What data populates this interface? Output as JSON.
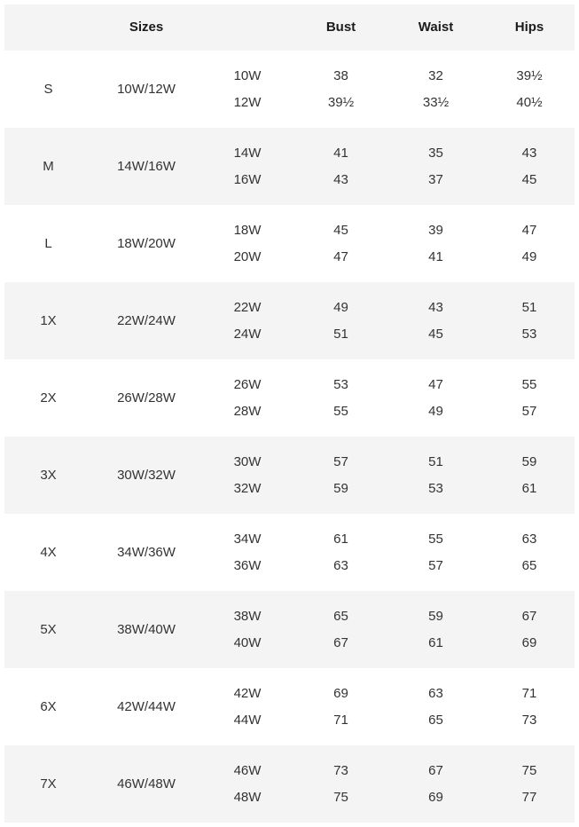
{
  "header": {
    "sizes": "Sizes",
    "bust": "Bust",
    "waist": "Waist",
    "hips": "Hips"
  },
  "colors": {
    "background": "#ffffff",
    "band": "#f4f4f4",
    "text": "#333333",
    "header_text": "#1b1b1b"
  },
  "rows": [
    {
      "letter": "S",
      "sizes": "10W/12W",
      "sub": [
        {
          "size": "10W",
          "bust": "38",
          "waist": "32",
          "hips": "39½"
        },
        {
          "size": "12W",
          "bust": "39½",
          "waist": "33½",
          "hips": "40½"
        }
      ]
    },
    {
      "letter": "M",
      "sizes": "14W/16W",
      "sub": [
        {
          "size": "14W",
          "bust": "41",
          "waist": "35",
          "hips": "43"
        },
        {
          "size": "16W",
          "bust": "43",
          "waist": "37",
          "hips": "45"
        }
      ]
    },
    {
      "letter": "L",
      "sizes": "18W/20W",
      "sub": [
        {
          "size": "18W",
          "bust": "45",
          "waist": "39",
          "hips": "47"
        },
        {
          "size": "20W",
          "bust": "47",
          "waist": "41",
          "hips": "49"
        }
      ]
    },
    {
      "letter": "1X",
      "sizes": "22W/24W",
      "sub": [
        {
          "size": "22W",
          "bust": "49",
          "waist": "43",
          "hips": "51"
        },
        {
          "size": "24W",
          "bust": "51",
          "waist": "45",
          "hips": "53"
        }
      ]
    },
    {
      "letter": "2X",
      "sizes": "26W/28W",
      "sub": [
        {
          "size": "26W",
          "bust": "53",
          "waist": "47",
          "hips": "55"
        },
        {
          "size": "28W",
          "bust": "55",
          "waist": "49",
          "hips": "57"
        }
      ]
    },
    {
      "letter": "3X",
      "sizes": "30W/32W",
      "sub": [
        {
          "size": "30W",
          "bust": "57",
          "waist": "51",
          "hips": "59"
        },
        {
          "size": "32W",
          "bust": "59",
          "waist": "53",
          "hips": "61"
        }
      ]
    },
    {
      "letter": "4X",
      "sizes": "34W/36W",
      "sub": [
        {
          "size": "34W",
          "bust": "61",
          "waist": "55",
          "hips": "63"
        },
        {
          "size": "36W",
          "bust": "63",
          "waist": "57",
          "hips": "65"
        }
      ]
    },
    {
      "letter": "5X",
      "sizes": "38W/40W",
      "sub": [
        {
          "size": "38W",
          "bust": "65",
          "waist": "59",
          "hips": "67"
        },
        {
          "size": "40W",
          "bust": "67",
          "waist": "61",
          "hips": "69"
        }
      ]
    },
    {
      "letter": "6X",
      "sizes": "42W/44W",
      "sub": [
        {
          "size": "42W",
          "bust": "69",
          "waist": "63",
          "hips": "71"
        },
        {
          "size": "44W",
          "bust": "71",
          "waist": "65",
          "hips": "73"
        }
      ]
    },
    {
      "letter": "7X",
      "sizes": "46W/48W",
      "sub": [
        {
          "size": "46W",
          "bust": "73",
          "waist": "67",
          "hips": "75"
        },
        {
          "size": "48W",
          "bust": "75",
          "waist": "69",
          "hips": "77"
        }
      ]
    }
  ],
  "chart_data": {
    "type": "table",
    "columns": [
      "",
      "Sizes",
      "",
      "Bust",
      "Waist",
      "Hips"
    ],
    "rows": [
      [
        "S",
        "10W/12W",
        "10W",
        "38",
        "32",
        "39½"
      ],
      [
        "",
        "",
        "12W",
        "39½",
        "33½",
        "40½"
      ],
      [
        "M",
        "14W/16W",
        "14W",
        "41",
        "35",
        "43"
      ],
      [
        "",
        "",
        "16W",
        "43",
        "37",
        "45"
      ],
      [
        "L",
        "18W/20W",
        "18W",
        "45",
        "39",
        "47"
      ],
      [
        "",
        "",
        "20W",
        "47",
        "41",
        "49"
      ],
      [
        "1X",
        "22W/24W",
        "22W",
        "49",
        "43",
        "51"
      ],
      [
        "",
        "",
        "24W",
        "51",
        "45",
        "53"
      ],
      [
        "2X",
        "26W/28W",
        "26W",
        "53",
        "47",
        "55"
      ],
      [
        "",
        "",
        "28W",
        "55",
        "49",
        "57"
      ],
      [
        "3X",
        "30W/32W",
        "30W",
        "57",
        "51",
        "59"
      ],
      [
        "",
        "",
        "32W",
        "59",
        "53",
        "61"
      ],
      [
        "4X",
        "34W/36W",
        "34W",
        "61",
        "55",
        "63"
      ],
      [
        "",
        "",
        "36W",
        "63",
        "57",
        "65"
      ],
      [
        "5X",
        "38W/40W",
        "38W",
        "65",
        "59",
        "67"
      ],
      [
        "",
        "",
        "40W",
        "67",
        "61",
        "69"
      ],
      [
        "6X",
        "42W/44W",
        "42W",
        "69",
        "63",
        "71"
      ],
      [
        "",
        "",
        "44W",
        "71",
        "65",
        "73"
      ],
      [
        "7X",
        "46W/48W",
        "46W",
        "73",
        "67",
        "75"
      ],
      [
        "",
        "",
        "48W",
        "75",
        "69",
        "77"
      ]
    ],
    "layout": {
      "striped": true,
      "stripe_color": "#f4f4f4",
      "header_background": "#f4f4f4",
      "alignment": "center"
    }
  }
}
